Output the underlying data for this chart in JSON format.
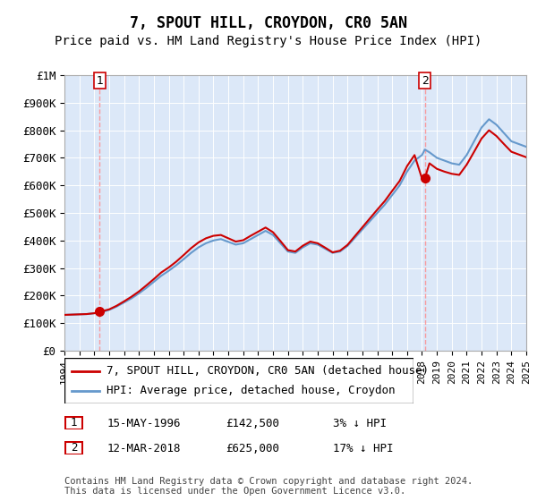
{
  "title": "7, SPOUT HILL, CROYDON, CR0 5AN",
  "subtitle": "Price paid vs. HM Land Registry's House Price Index (HPI)",
  "xlabel": "",
  "ylabel": "",
  "ylim": [
    0,
    1000000
  ],
  "yticks": [
    0,
    100000,
    200000,
    300000,
    400000,
    500000,
    600000,
    700000,
    800000,
    900000,
    1000000
  ],
  "ytick_labels": [
    "£0",
    "£100K",
    "£200K",
    "£300K",
    "£400K",
    "£500K",
    "£600K",
    "£700K",
    "£800K",
    "£900K",
    "£1M"
  ],
  "hpi_color": "#6699cc",
  "price_color": "#cc0000",
  "dashed_line_color": "#ff6666",
  "bg_hatch_color": "#e8eef8",
  "sale1_year": 1996.37,
  "sale1_price": 142500,
  "sale1_label": "1",
  "sale1_date": "15-MAY-1996",
  "sale1_pct": "3%",
  "sale2_year": 2018.19,
  "sale2_price": 625000,
  "sale2_label": "2",
  "sale2_date": "12-MAR-2018",
  "sale2_pct": "17%",
  "legend_entry1": "7, SPOUT HILL, CROYDON, CR0 5AN (detached house)",
  "legend_entry2": "HPI: Average price, detached house, Croydon",
  "footer": "Contains HM Land Registry data © Crown copyright and database right 2024.\nThis data is licensed under the Open Government Licence v3.0.",
  "xmin": 1994,
  "xmax": 2025,
  "hpi_data_x": [
    1994,
    1994.5,
    1995,
    1995.5,
    1996,
    1996.37,
    1996.5,
    1997,
    1997.5,
    1998,
    1998.5,
    1999,
    1999.5,
    2000,
    2000.5,
    2001,
    2001.5,
    2002,
    2002.5,
    2003,
    2003.5,
    2004,
    2004.5,
    2005,
    2005.5,
    2006,
    2006.5,
    2007,
    2007.5,
    2008,
    2008.5,
    2009,
    2009.5,
    2010,
    2010.5,
    2011,
    2011.5,
    2012,
    2012.5,
    2013,
    2013.5,
    2014,
    2014.5,
    2015,
    2015.5,
    2016,
    2016.5,
    2017,
    2017.5,
    2018,
    2018.19,
    2018.5,
    2019,
    2019.5,
    2020,
    2020.5,
    2021,
    2021.5,
    2022,
    2022.5,
    2023,
    2023.5,
    2024,
    2024.5,
    2025
  ],
  "hpi_data_y": [
    130000,
    131000,
    132000,
    133000,
    136000,
    138000,
    140000,
    148000,
    160000,
    175000,
    190000,
    208000,
    228000,
    250000,
    272000,
    290000,
    310000,
    332000,
    355000,
    375000,
    390000,
    400000,
    405000,
    395000,
    385000,
    390000,
    405000,
    420000,
    435000,
    420000,
    390000,
    360000,
    355000,
    375000,
    390000,
    385000,
    370000,
    355000,
    360000,
    380000,
    410000,
    440000,
    470000,
    500000,
    530000,
    565000,
    600000,
    650000,
    690000,
    710000,
    730000,
    720000,
    700000,
    690000,
    680000,
    675000,
    710000,
    760000,
    810000,
    840000,
    820000,
    790000,
    760000,
    750000,
    740000
  ],
  "price_data_x": [
    1994,
    1994.5,
    1995,
    1995.5,
    1996,
    1996.37,
    1996.5,
    1997,
    1997.5,
    1998,
    1998.5,
    1999,
    1999.5,
    2000,
    2000.5,
    2001,
    2001.5,
    2002,
    2002.5,
    2003,
    2003.5,
    2004,
    2004.5,
    2005,
    2005.5,
    2006,
    2006.5,
    2007,
    2007.5,
    2008,
    2008.5,
    2009,
    2009.5,
    2010,
    2010.5,
    2011,
    2011.5,
    2012,
    2012.5,
    2013,
    2013.5,
    2014,
    2014.5,
    2015,
    2015.5,
    2016,
    2016.5,
    2017,
    2017.5,
    2018,
    2018.19,
    2018.5,
    2019,
    2019.5,
    2020,
    2020.5,
    2021,
    2021.5,
    2022,
    2022.5,
    2023,
    2023.5,
    2024,
    2024.5,
    2025
  ],
  "price_data_y": [
    130000,
    131000,
    132000,
    133000,
    136000,
    142500,
    143000,
    150000,
    163000,
    179000,
    196000,
    215000,
    237000,
    260000,
    284000,
    302000,
    323000,
    347000,
    372000,
    393000,
    408000,
    417000,
    420000,
    408000,
    396000,
    401000,
    417000,
    432000,
    447000,
    430000,
    398000,
    365000,
    360000,
    381000,
    396000,
    390000,
    374000,
    357000,
    363000,
    384000,
    416000,
    448000,
    480000,
    512000,
    543000,
    580000,
    616000,
    670000,
    710000,
    625000,
    625000,
    680000,
    660000,
    650000,
    642000,
    638000,
    675000,
    722000,
    770000,
    800000,
    779000,
    750000,
    722000,
    712000,
    702000
  ],
  "title_fontsize": 12,
  "subtitle_fontsize": 10,
  "tick_fontsize": 9,
  "legend_fontsize": 9,
  "footer_fontsize": 7.5
}
